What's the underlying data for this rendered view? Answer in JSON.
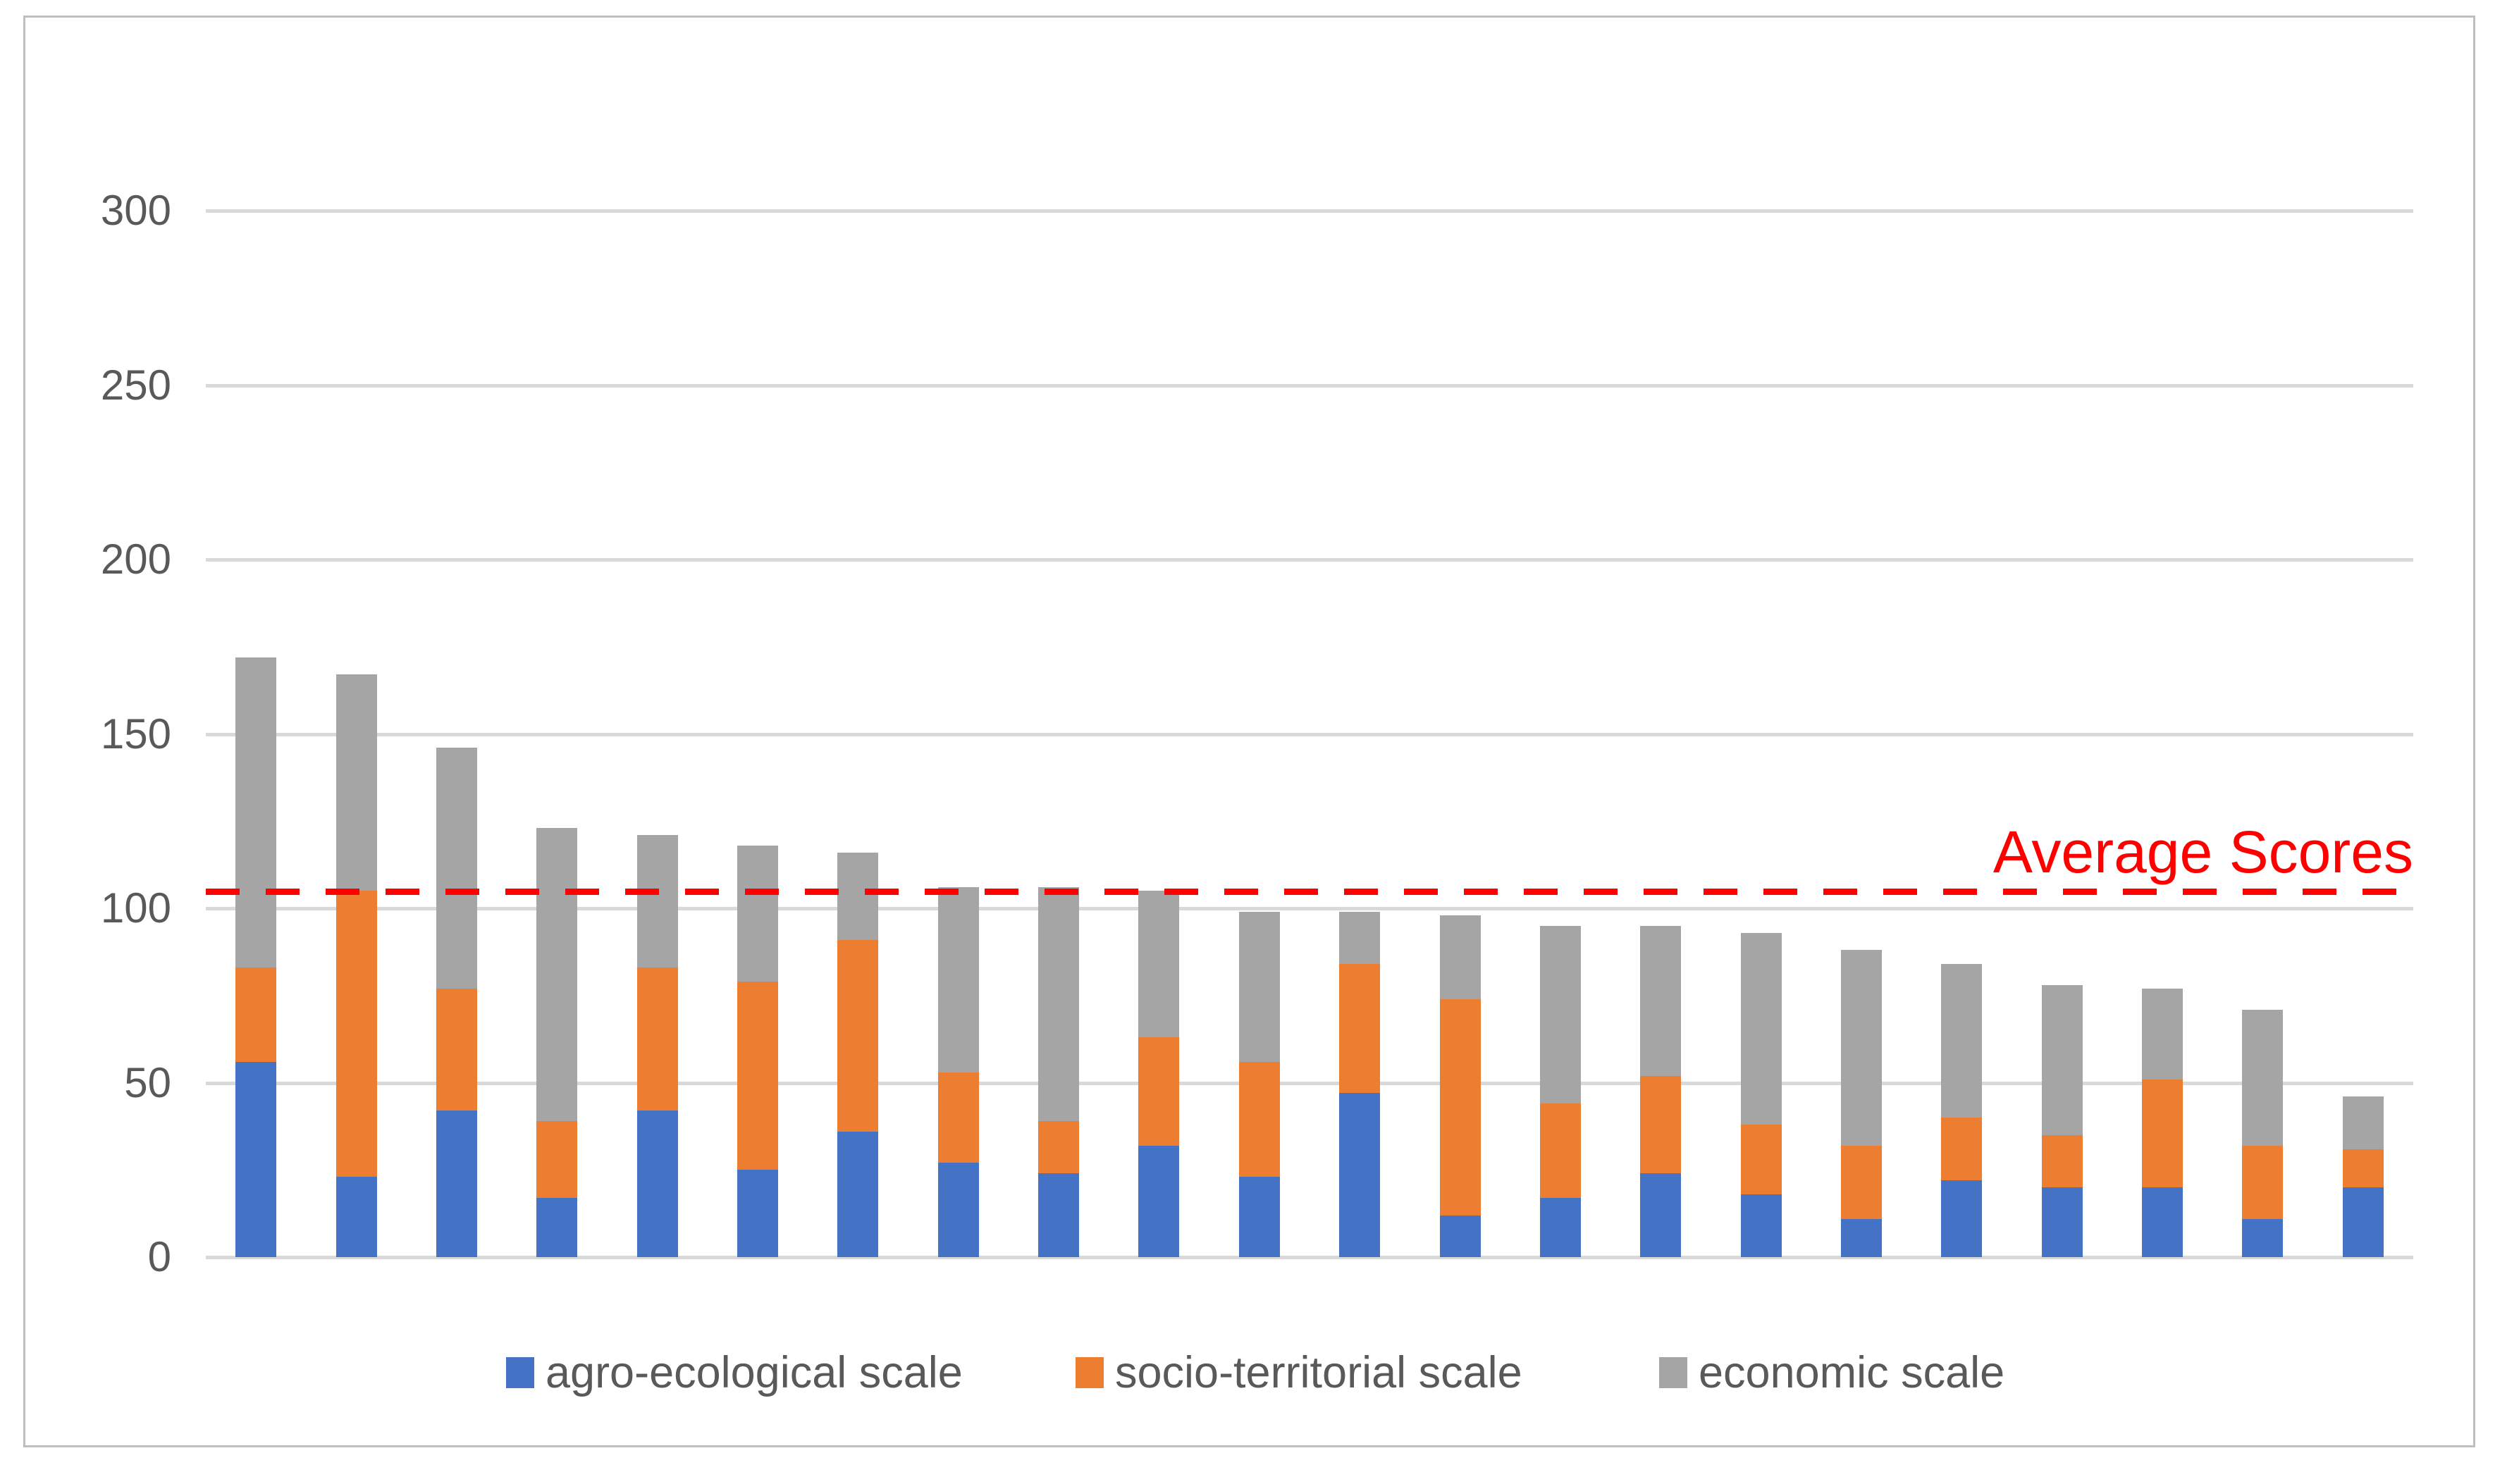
{
  "chart_data": {
    "type": "bar",
    "stacked": true,
    "bar_count": 22,
    "categories": [
      "",
      "",
      "",
      "",
      "",
      "",
      "",
      "",
      "",
      "",
      "",
      "",
      "",
      "",
      "",
      "",
      "",
      "",
      "",
      "",
      "",
      ""
    ],
    "series": [
      {
        "name": "agro-ecological scale",
        "color": "#4472C4",
        "values": [
          56,
          23,
          42,
          17,
          42,
          25,
          36,
          27,
          24,
          32,
          23,
          47,
          12,
          17,
          24,
          18,
          11,
          22,
          20,
          20,
          11,
          20
        ]
      },
      {
        "name": "socio-territorial scale",
        "color": "#ED7D31",
        "values": [
          27,
          82,
          35,
          22,
          41,
          54,
          55,
          26,
          15,
          31,
          33,
          37,
          62,
          27,
          28,
          20,
          21,
          18,
          15,
          31,
          21,
          11
        ]
      },
      {
        "name": "economic scale",
        "color": "#A5A5A5",
        "values": [
          89,
          62,
          69,
          84,
          38,
          39,
          25,
          53,
          67,
          42,
          43,
          15,
          24,
          51,
          43,
          55,
          56,
          44,
          43,
          26,
          39,
          15
        ]
      }
    ],
    "ylim": [
      0,
      300
    ],
    "yticks": [
      0,
      50,
      100,
      150,
      200,
      250,
      300
    ],
    "grid": true,
    "legend_position": "bottom",
    "average_line": {
      "value": 104.7,
      "label": "Average Scores",
      "color": "#FF0000"
    },
    "gridline_color": "#D9D9D9",
    "axis_text_color": "#595959"
  }
}
